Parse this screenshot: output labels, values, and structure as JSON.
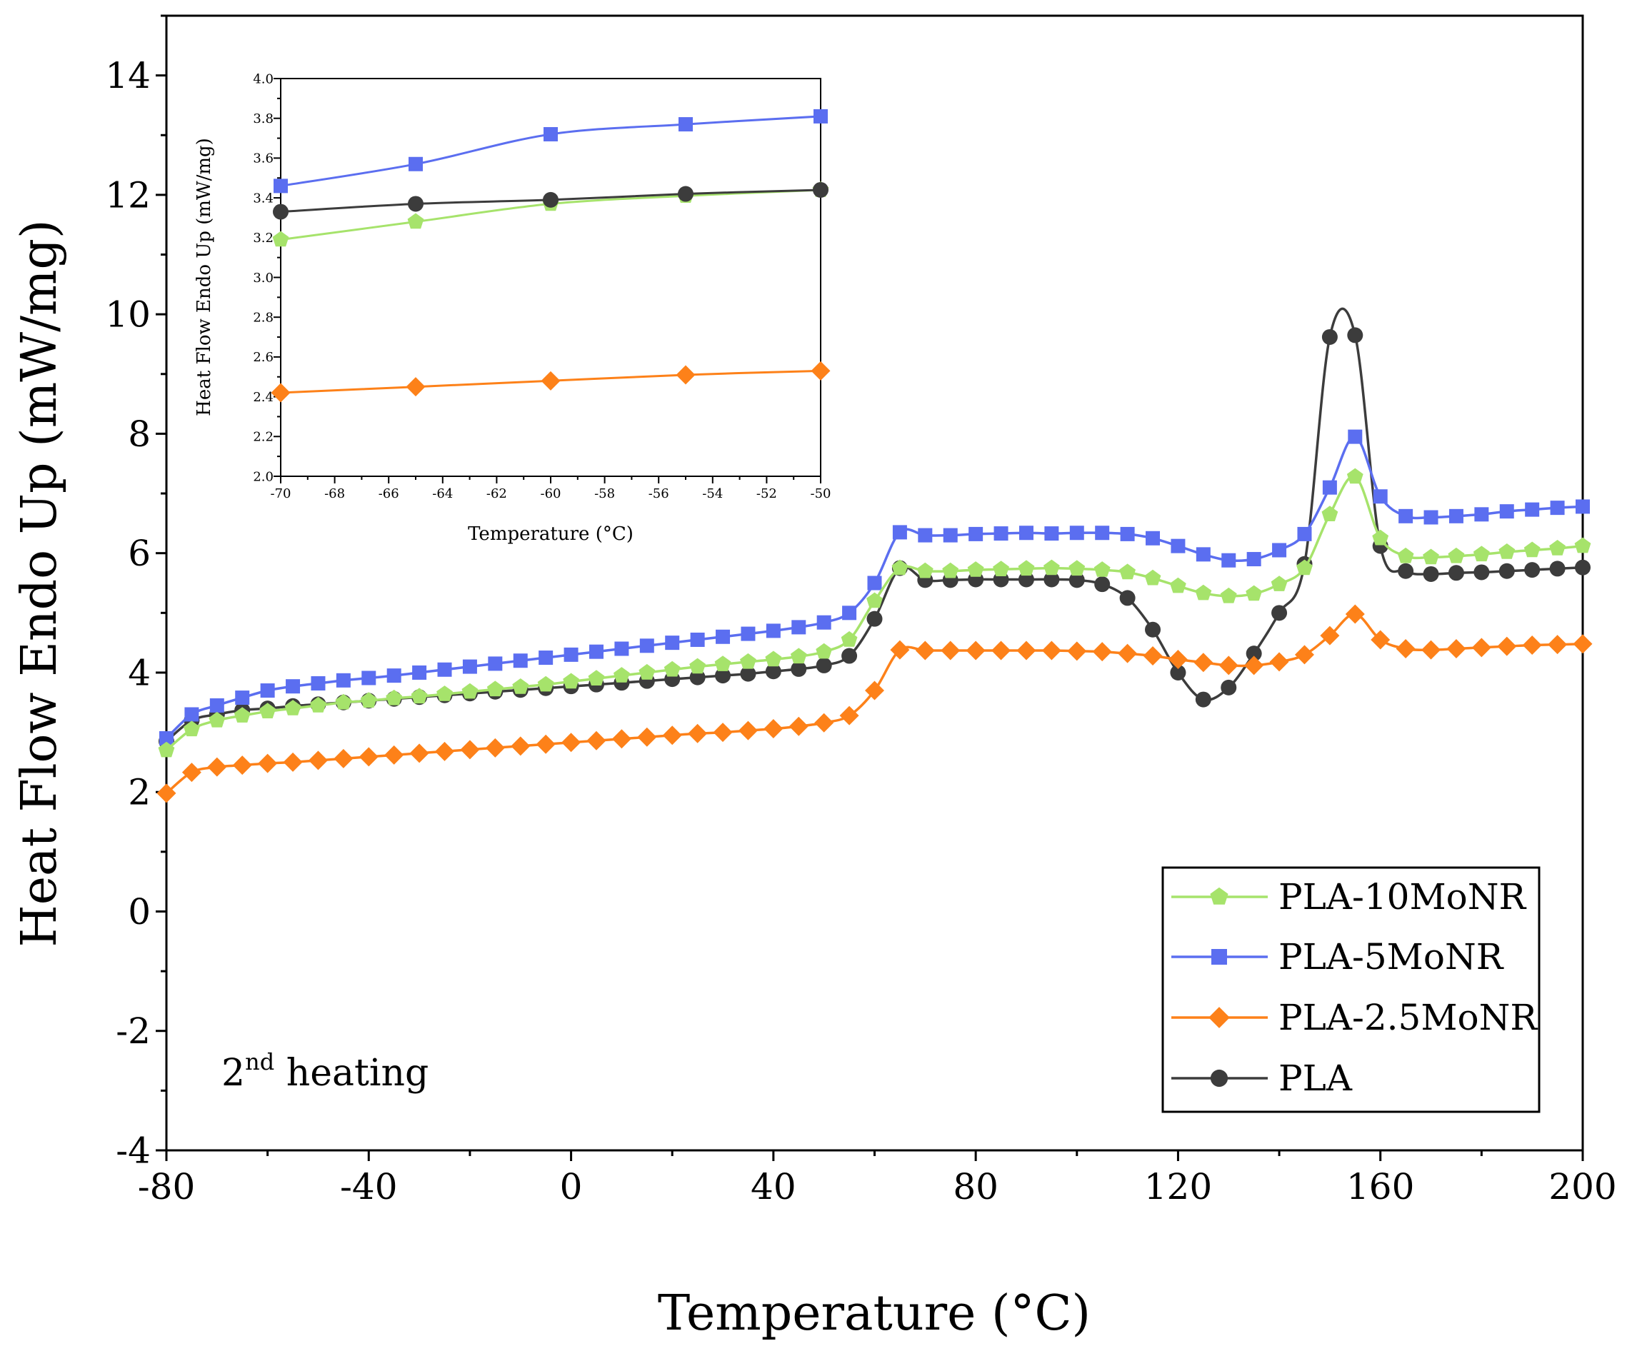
{
  "chart_data": [
    {
      "type": "line",
      "name": "main",
      "title": "",
      "xlabel": "Temperature (°C)",
      "ylabel": "Heat Flow Endo Up (mW/mg)",
      "xlim": [
        -80,
        200
      ],
      "ylim": [
        -4,
        15
      ],
      "xticks": [
        "-80",
        "-40",
        "0",
        "40",
        "80",
        "120",
        "160",
        "200"
      ],
      "yticks": [
        "-4",
        "-2",
        "0",
        "2",
        "4",
        "6",
        "8",
        "10",
        "12",
        "14"
      ],
      "annotation": {
        "base": "2",
        "sup": "nd",
        "rest": " heating"
      },
      "legend_position": "bottom-right",
      "series": [
        {
          "name": "PLA-10MoNR",
          "color": "#a6e36b",
          "marker": "pentagon",
          "x": [
            -80,
            -75,
            -70,
            -65,
            -60,
            -55,
            -50,
            -45,
            -40,
            -35,
            -30,
            -25,
            -20,
            -15,
            -10,
            -5,
            0,
            5,
            10,
            15,
            20,
            25,
            30,
            35,
            40,
            45,
            50,
            55,
            60,
            65,
            70,
            75,
            80,
            85,
            90,
            95,
            100,
            105,
            110,
            115,
            120,
            125,
            130,
            135,
            140,
            145,
            150,
            155,
            160,
            165,
            170,
            175,
            180,
            185,
            190,
            195,
            200
          ],
          "y": [
            2.7,
            3.05,
            3.2,
            3.28,
            3.35,
            3.4,
            3.45,
            3.5,
            3.53,
            3.57,
            3.6,
            3.64,
            3.68,
            3.72,
            3.76,
            3.8,
            3.85,
            3.9,
            3.95,
            4.0,
            4.05,
            4.1,
            4.14,
            4.18,
            4.22,
            4.27,
            4.35,
            4.55,
            5.2,
            5.75,
            5.7,
            5.7,
            5.72,
            5.73,
            5.74,
            5.75,
            5.74,
            5.72,
            5.68,
            5.58,
            5.45,
            5.33,
            5.28,
            5.32,
            5.48,
            5.75,
            6.65,
            7.28,
            6.25,
            5.95,
            5.93,
            5.95,
            5.98,
            6.02,
            6.05,
            6.08,
            6.12
          ]
        },
        {
          "name": "PLA-5MoNR",
          "color": "#5b6ef0",
          "marker": "square",
          "x": [
            -80,
            -75,
            -70,
            -65,
            -60,
            -55,
            -50,
            -45,
            -40,
            -35,
            -30,
            -25,
            -20,
            -15,
            -10,
            -5,
            0,
            5,
            10,
            15,
            20,
            25,
            30,
            35,
            40,
            45,
            50,
            55,
            60,
            65,
            70,
            75,
            80,
            85,
            90,
            95,
            100,
            105,
            110,
            115,
            120,
            125,
            130,
            135,
            140,
            145,
            150,
            155,
            160,
            165,
            170,
            175,
            180,
            185,
            190,
            195,
            200
          ],
          "y": [
            2.9,
            3.3,
            3.45,
            3.58,
            3.7,
            3.77,
            3.82,
            3.87,
            3.91,
            3.95,
            4.0,
            4.05,
            4.1,
            4.15,
            4.2,
            4.25,
            4.3,
            4.35,
            4.4,
            4.45,
            4.5,
            4.55,
            4.6,
            4.65,
            4.7,
            4.76,
            4.84,
            5.0,
            5.5,
            6.35,
            6.3,
            6.3,
            6.32,
            6.33,
            6.34,
            6.33,
            6.34,
            6.34,
            6.32,
            6.25,
            6.12,
            5.98,
            5.88,
            5.9,
            6.05,
            6.32,
            7.1,
            7.95,
            6.95,
            6.62,
            6.6,
            6.62,
            6.65,
            6.7,
            6.73,
            6.76,
            6.78
          ]
        },
        {
          "name": "PLA-2.5MoNR",
          "color": "#fd8119",
          "marker": "diamond",
          "x": [
            -80,
            -75,
            -70,
            -65,
            -60,
            -55,
            -50,
            -45,
            -40,
            -35,
            -30,
            -25,
            -20,
            -15,
            -10,
            -5,
            0,
            5,
            10,
            15,
            20,
            25,
            30,
            35,
            40,
            45,
            50,
            55,
            60,
            65,
            70,
            75,
            80,
            85,
            90,
            95,
            100,
            105,
            110,
            115,
            120,
            125,
            130,
            135,
            140,
            145,
            150,
            155,
            160,
            165,
            170,
            175,
            180,
            185,
            190,
            195,
            200
          ],
          "y": [
            1.98,
            2.33,
            2.42,
            2.45,
            2.48,
            2.5,
            2.53,
            2.56,
            2.59,
            2.62,
            2.65,
            2.68,
            2.71,
            2.74,
            2.77,
            2.8,
            2.83,
            2.86,
            2.89,
            2.92,
            2.95,
            2.98,
            3.0,
            3.03,
            3.06,
            3.1,
            3.16,
            3.28,
            3.7,
            4.38,
            4.37,
            4.37,
            4.37,
            4.37,
            4.37,
            4.37,
            4.36,
            4.35,
            4.32,
            4.28,
            4.22,
            4.17,
            4.12,
            4.12,
            4.18,
            4.3,
            4.62,
            4.98,
            4.55,
            4.4,
            4.38,
            4.4,
            4.42,
            4.44,
            4.46,
            4.47,
            4.48
          ]
        },
        {
          "name": "PLA",
          "color": "#3c3c3c",
          "marker": "circle",
          "x": [
            -80,
            -75,
            -70,
            -65,
            -60,
            -55,
            -50,
            -45,
            -40,
            -35,
            -30,
            -25,
            -20,
            -15,
            -10,
            -5,
            0,
            5,
            10,
            15,
            20,
            25,
            30,
            35,
            40,
            45,
            50,
            55,
            60,
            65,
            70,
            75,
            80,
            85,
            90,
            95,
            100,
            105,
            110,
            115,
            120,
            125,
            130,
            135,
            140,
            145,
            150,
            155,
            160,
            165,
            170,
            175,
            180,
            185,
            190,
            195,
            200
          ],
          "y": [
            2.85,
            3.2,
            3.3,
            3.37,
            3.4,
            3.44,
            3.47,
            3.5,
            3.53,
            3.56,
            3.59,
            3.62,
            3.65,
            3.68,
            3.71,
            3.74,
            3.77,
            3.8,
            3.83,
            3.86,
            3.89,
            3.92,
            3.95,
            3.98,
            4.02,
            4.06,
            4.12,
            4.28,
            4.9,
            5.75,
            5.55,
            5.55,
            5.56,
            5.56,
            5.56,
            5.56,
            5.55,
            5.48,
            5.25,
            4.72,
            4.0,
            3.55,
            3.75,
            4.32,
            5.0,
            5.82,
            9.62,
            9.65,
            6.12,
            5.7,
            5.65,
            5.67,
            5.68,
            5.7,
            5.72,
            5.74,
            5.76
          ]
        }
      ]
    },
    {
      "type": "line",
      "name": "inset",
      "title": "",
      "xlabel": "Temperature (°C)",
      "ylabel": "Heat Flow Endo Up (mW/mg)",
      "xlim": [
        -70,
        -50
      ],
      "ylim": [
        2.0,
        4.0
      ],
      "xticks": [
        "-70",
        "-68",
        "-66",
        "-64",
        "-62",
        "-60",
        "-58",
        "-56",
        "-54",
        "-52",
        "-50"
      ],
      "yticks": [
        "2.0",
        "2.2",
        "2.4",
        "2.6",
        "2.8",
        "3.0",
        "3.2",
        "3.4",
        "3.6",
        "3.8",
        "4.0"
      ],
      "series": [
        {
          "name": "PLA-10MoNR",
          "color": "#a6e36b",
          "marker": "pentagon",
          "x": [
            -70,
            -65,
            -60,
            -55,
            -50
          ],
          "y": [
            3.19,
            3.28,
            3.37,
            3.41,
            3.44
          ]
        },
        {
          "name": "PLA-5MoNR",
          "color": "#5b6ef0",
          "marker": "square",
          "x": [
            -70,
            -65,
            -60,
            -55,
            -50
          ],
          "y": [
            3.46,
            3.57,
            3.72,
            3.77,
            3.81
          ]
        },
        {
          "name": "PLA-2.5MoNR",
          "color": "#fd8119",
          "marker": "diamond",
          "x": [
            -70,
            -65,
            -60,
            -55,
            -50
          ],
          "y": [
            2.42,
            2.45,
            2.48,
            2.51,
            2.53
          ]
        },
        {
          "name": "PLA",
          "color": "#3c3c3c",
          "marker": "circle",
          "x": [
            -70,
            -65,
            -60,
            -55,
            -50
          ],
          "y": [
            3.33,
            3.37,
            3.39,
            3.42,
            3.44
          ]
        }
      ]
    }
  ]
}
